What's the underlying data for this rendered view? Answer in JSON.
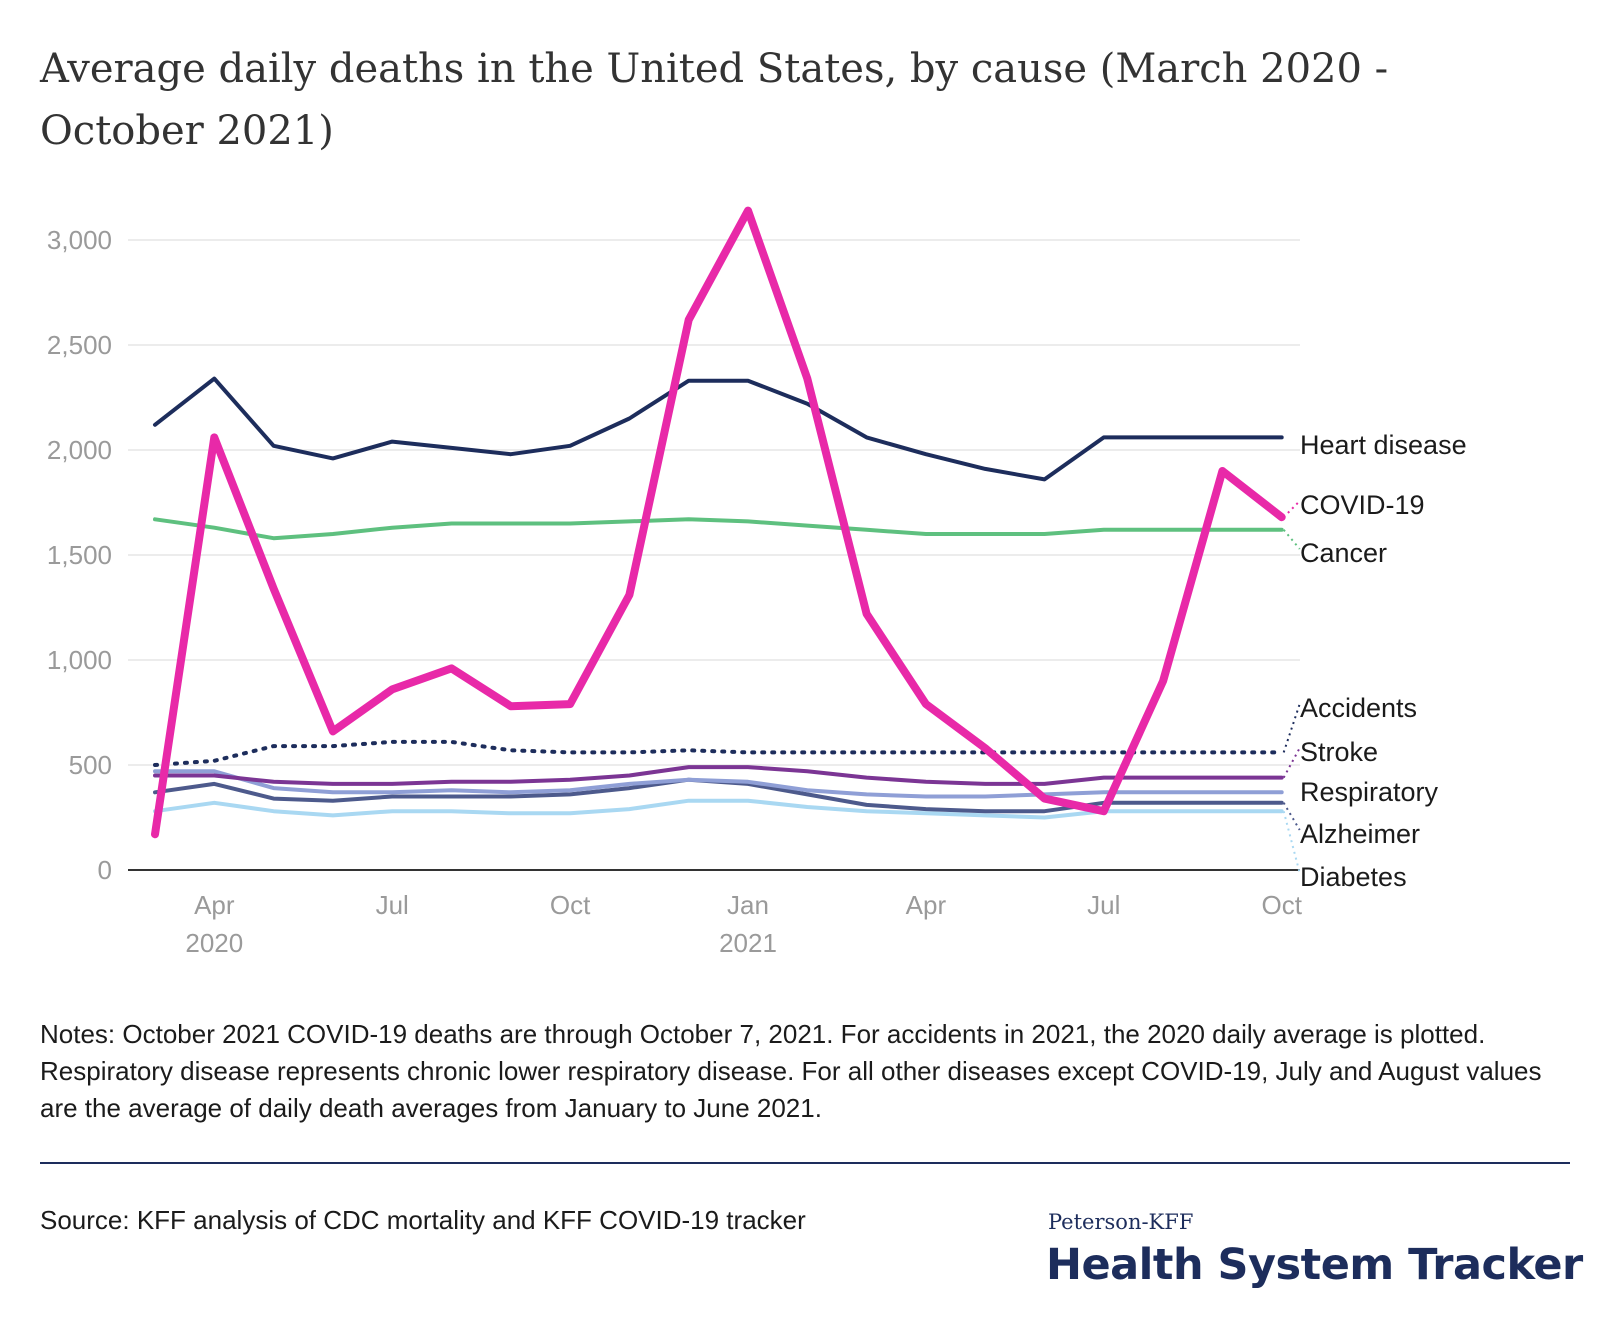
{
  "colors": {
    "heart": "#1d2d5c",
    "covid": "#e829a8",
    "cancer": "#5ec07f",
    "accidents": "#1d2d5c",
    "stroke": "#7b3594",
    "respiratory": "#8f9fd6",
    "alzheimer": "#4d5a8c",
    "diabetes": "#a9d8f2",
    "grid": "#e6e6e6",
    "tick": "#9a9a9a"
  },
  "chart_data": {
    "type": "line",
    "title": "Average daily deaths in the United States, by cause (March 2020 - October 2021)",
    "x": [
      "2020-03",
      "2020-04",
      "2020-05",
      "2020-06",
      "2020-07",
      "2020-08",
      "2020-09",
      "2020-10",
      "2020-11",
      "2020-12",
      "2021-01",
      "2021-02",
      "2021-03",
      "2021-04",
      "2021-05",
      "2021-06",
      "2021-07",
      "2021-08",
      "2021-09",
      "2021-10"
    ],
    "xticks": [
      {
        "x": "2020-04",
        "label": "Apr",
        "year": "2020"
      },
      {
        "x": "2020-07",
        "label": "Jul",
        "year": ""
      },
      {
        "x": "2020-10",
        "label": "Oct",
        "year": ""
      },
      {
        "x": "2021-01",
        "label": "Jan",
        "year": "2021"
      },
      {
        "x": "2021-04",
        "label": "Apr",
        "year": ""
      },
      {
        "x": "2021-07",
        "label": "Jul",
        "year": ""
      },
      {
        "x": "2021-10",
        "label": "Oct",
        "year": ""
      }
    ],
    "yticks": [
      {
        "value": 0,
        "label": "0"
      },
      {
        "value": 500,
        "label": "500"
      },
      {
        "value": 1000,
        "label": "1,000"
      },
      {
        "value": 1500,
        "label": "1,500"
      },
      {
        "value": 2000,
        "label": "2,000"
      },
      {
        "value": 2500,
        "label": "2,500"
      },
      {
        "value": 3000,
        "label": "3,000"
      }
    ],
    "ylim": [
      0,
      3000
    ],
    "grid": true,
    "legend": "direct labels at right",
    "series": [
      {
        "name": "Heart disease",
        "color_key": "heart",
        "dashed": false,
        "values": [
          2120,
          2340,
          2020,
          1960,
          2040,
          2010,
          1980,
          2020,
          2150,
          2330,
          2330,
          2220,
          2060,
          1980,
          1910,
          1860,
          2060,
          2060,
          2060,
          2060
        ]
      },
      {
        "name": "COVID-19",
        "color_key": "covid",
        "dashed": false,
        "values": [
          170,
          2060,
          1340,
          660,
          860,
          960,
          780,
          790,
          1310,
          2620,
          3140,
          2340,
          1220,
          790,
          580,
          340,
          280,
          900,
          1900,
          1680
        ]
      },
      {
        "name": "Cancer",
        "color_key": "cancer",
        "dashed": false,
        "values": [
          1670,
          1630,
          1580,
          1600,
          1630,
          1650,
          1650,
          1650,
          1660,
          1670,
          1660,
          1640,
          1620,
          1600,
          1600,
          1600,
          1620,
          1620,
          1620,
          1620
        ]
      },
      {
        "name": "Accidents",
        "color_key": "accidents",
        "dashed": true,
        "values": [
          500,
          520,
          590,
          590,
          610,
          610,
          570,
          560,
          560,
          570,
          560,
          560,
          560,
          560,
          560,
          560,
          560,
          560,
          560,
          560
        ]
      },
      {
        "name": "Stroke",
        "color_key": "stroke",
        "dashed": false,
        "values": [
          450,
          450,
          420,
          410,
          410,
          420,
          420,
          430,
          450,
          490,
          490,
          470,
          440,
          420,
          410,
          410,
          440,
          440,
          440,
          440
        ]
      },
      {
        "name": "Respiratory",
        "color_key": "respiratory",
        "dashed": false,
        "values": [
          470,
          470,
          390,
          370,
          370,
          380,
          370,
          380,
          410,
          430,
          420,
          380,
          360,
          350,
          350,
          360,
          370,
          370,
          370,
          370
        ]
      },
      {
        "name": "Alzheimer",
        "color_key": "alzheimer",
        "dashed": false,
        "values": [
          370,
          410,
          340,
          330,
          350,
          350,
          350,
          360,
          390,
          430,
          410,
          360,
          310,
          290,
          280,
          280,
          320,
          320,
          320,
          320
        ]
      },
      {
        "name": "Diabetes",
        "color_key": "diabetes",
        "dashed": false,
        "values": [
          280,
          320,
          280,
          260,
          280,
          280,
          270,
          270,
          290,
          330,
          330,
          300,
          280,
          270,
          260,
          250,
          280,
          280,
          280,
          280
        ]
      }
    ],
    "label_order": [
      "Heart disease",
      "COVID-19",
      "Cancer",
      "Accidents",
      "Stroke",
      "Respiratory",
      "Alzheimer",
      "Diabetes"
    ]
  },
  "notes": "Notes: October 2021 COVID-19 deaths are through October 7, 2021. For accidents in 2021, the 2020 daily average is plotted.  Respiratory disease represents chronic lower respiratory disease.  For all other diseases except COVID-19, July and August values are the average of daily death averages from January to June 2021.",
  "source": "Source: KFF analysis of CDC mortality and KFF COVID-19 tracker",
  "brand": {
    "small": "Peterson-KFF",
    "big": "Health System Tracker"
  }
}
